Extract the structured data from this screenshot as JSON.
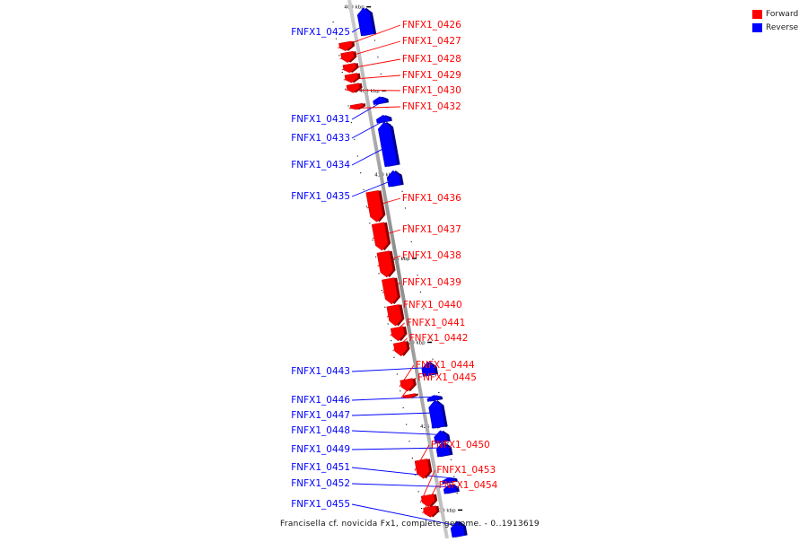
{
  "caption": "Francisella cf. novicida Fx1, complete genome. - 0..1913619",
  "legend": {
    "forward_label": "Forward",
    "reverse_label": "Reverse",
    "forward_color": "#ff0000",
    "reverse_color": "#0000ff"
  },
  "axis": {
    "start_kbp": 399.4,
    "end_kbp": 431.5,
    "ticks": [
      "400 kbp",
      "405 kbp",
      "410 kbp",
      "415 kbp",
      "420 kbp",
      "425 kbp",
      "430 kbp"
    ]
  },
  "genes": [
    {
      "name": "FNFX1_0425",
      "strand": "reverse",
      "start": 400.0,
      "end": 401.6
    },
    {
      "name": "FNFX1_0426",
      "strand": "forward",
      "start": 401.8,
      "end": 402.3
    },
    {
      "name": "FNFX1_0427",
      "strand": "forward",
      "start": 402.4,
      "end": 403.0
    },
    {
      "name": "FNFX1_0428",
      "strand": "forward",
      "start": 403.1,
      "end": 403.6
    },
    {
      "name": "FNFX1_0429",
      "strand": "forward",
      "start": 403.7,
      "end": 404.2
    },
    {
      "name": "FNFX1_0430",
      "strand": "forward",
      "start": 404.3,
      "end": 404.8
    },
    {
      "name": "FNFX1_0431",
      "strand": "reverse",
      "start": 405.3,
      "end": 405.7
    },
    {
      "name": "FNFX1_0432",
      "strand": "forward",
      "start": 405.5,
      "end": 405.8
    },
    {
      "name": "FNFX1_0433",
      "strand": "reverse",
      "start": 406.4,
      "end": 406.8
    },
    {
      "name": "FNFX1_0434",
      "strand": "reverse",
      "start": 406.8,
      "end": 409.4
    },
    {
      "name": "FNFX1_0435",
      "strand": "reverse",
      "start": 409.7,
      "end": 410.6
    },
    {
      "name": "FNFX1_0436",
      "strand": "forward",
      "start": 410.7,
      "end": 412.5
    },
    {
      "name": "FNFX1_0437",
      "strand": "forward",
      "start": 412.6,
      "end": 414.2
    },
    {
      "name": "FNFX1_0438",
      "strand": "forward",
      "start": 414.3,
      "end": 415.8
    },
    {
      "name": "FNFX1_0439",
      "strand": "forward",
      "start": 415.9,
      "end": 417.4
    },
    {
      "name": "FNFX1_0440",
      "strand": "forward",
      "start": 417.5,
      "end": 418.7
    },
    {
      "name": "FNFX1_0441",
      "strand": "forward",
      "start": 418.8,
      "end": 419.6
    },
    {
      "name": "FNFX1_0442",
      "strand": "forward",
      "start": 419.7,
      "end": 420.5
    },
    {
      "name": "FNFX1_0443",
      "strand": "reverse",
      "start": 421.1,
      "end": 421.9
    },
    {
      "name": "FNFX1_0444",
      "strand": "forward",
      "start": 421.9,
      "end": 422.6
    },
    {
      "name": "FNFX1_0445",
      "strand": "forward",
      "start": 422.8,
      "end": 423.0
    },
    {
      "name": "FNFX1_0446",
      "strand": "reverse",
      "start": 423.1,
      "end": 423.4
    },
    {
      "name": "FNFX1_0447",
      "strand": "reverse",
      "start": 423.4,
      "end": 425.0
    },
    {
      "name": "FNFX1_0448",
      "strand": "reverse",
      "start": 425.2,
      "end": 425.9
    },
    {
      "name": "FNFX1_0449",
      "strand": "reverse",
      "start": 425.9,
      "end": 426.7
    },
    {
      "name": "FNFX1_0450",
      "strand": "forward",
      "start": 426.7,
      "end": 427.8
    },
    {
      "name": "FNFX1_0451",
      "strand": "reverse",
      "start": 428.0,
      "end": 428.3
    },
    {
      "name": "FNFX1_0452",
      "strand": "reverse",
      "start": 428.4,
      "end": 428.9
    },
    {
      "name": "FNFX1_0453",
      "strand": "forward",
      "start": 428.8,
      "end": 429.5
    },
    {
      "name": "FNFX1_0454",
      "strand": "forward",
      "start": 429.5,
      "end": 430.1
    },
    {
      "name": "FNFX1_0455",
      "strand": "reverse",
      "start": 430.6,
      "end": 431.5
    }
  ]
}
